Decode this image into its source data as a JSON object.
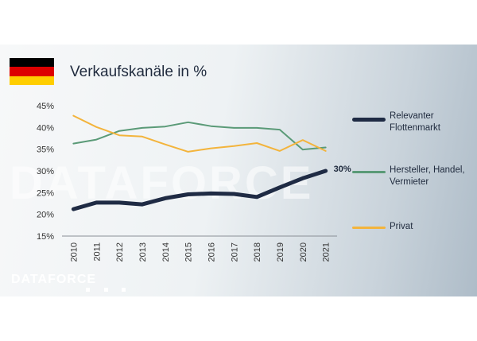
{
  "title": "Verkaufskanäle in %",
  "brand": "DATAFORCE",
  "watermark": "DATAFORCE",
  "flag_colors": [
    "#000000",
    "#dd0000",
    "#ffce00"
  ],
  "chart_data": {
    "type": "line",
    "title": "Verkaufskanäle in %",
    "xlabel": "",
    "ylabel": "",
    "categories": [
      "2010",
      "2011",
      "2012",
      "2013",
      "2014",
      "2015",
      "2016",
      "2017",
      "2018",
      "2019",
      "2020",
      "2021"
    ],
    "ylim": [
      15,
      45
    ],
    "yticks": [
      "15%",
      "20%",
      "25%",
      "30%",
      "35%",
      "40%",
      "45%"
    ],
    "grid": false,
    "legend_position": "right",
    "series": [
      {
        "name": "Relevanter Flottenmarkt",
        "color": "#1f2b44",
        "width": 5,
        "values": [
          21.2,
          22.7,
          22.7,
          22.3,
          23.7,
          24.6,
          24.8,
          24.7,
          24.0,
          26.2,
          28.3,
          30.0
        ],
        "end_label": "30%"
      },
      {
        "name": "Hersteller, Handel, Vermieter",
        "color": "#5a9a77",
        "width": 2,
        "values": [
          36.3,
          37.2,
          39.2,
          39.9,
          40.2,
          41.2,
          40.3,
          39.9,
          39.9,
          39.5,
          34.9,
          35.4
        ]
      },
      {
        "name": "Privat",
        "color": "#f3b43c",
        "width": 2,
        "values": [
          42.7,
          40.1,
          38.2,
          37.9,
          36.1,
          34.4,
          35.2,
          35.7,
          36.4,
          34.6,
          37.1,
          34.6
        ]
      }
    ]
  }
}
